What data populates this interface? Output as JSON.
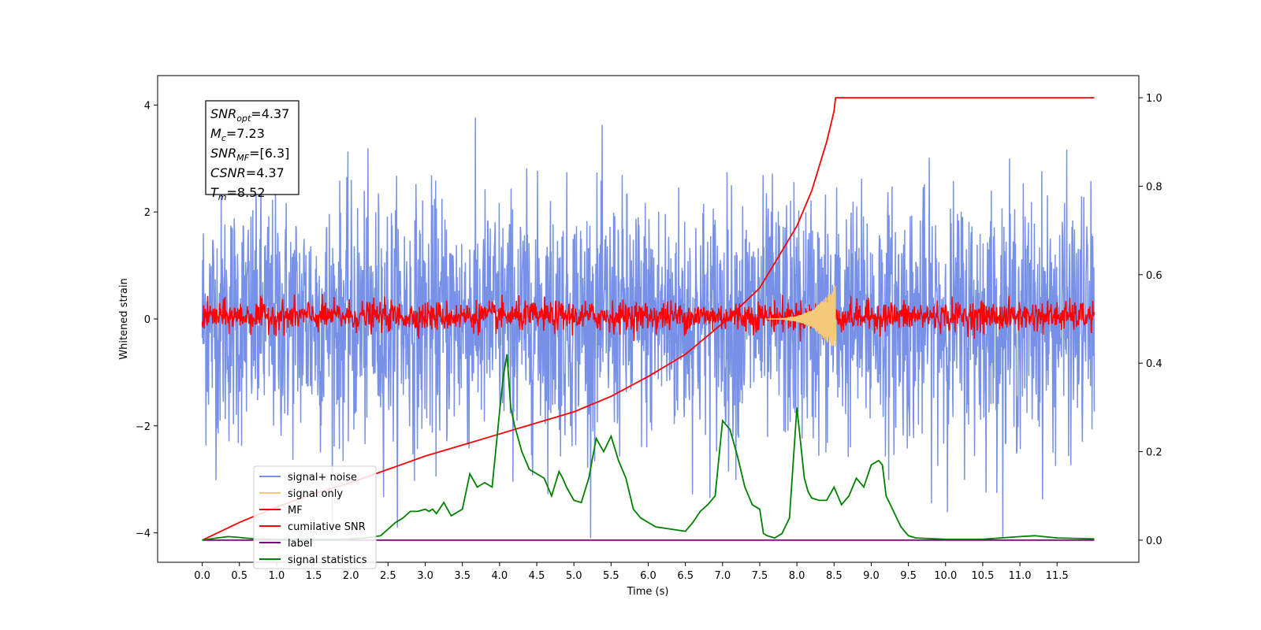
{
  "chart_data": {
    "type": "line",
    "xlabel": "Time (s)",
    "ylabel": "Whitened strain",
    "xlim": [
      -0.6,
      12.6
    ],
    "ylim": [
      -4.55,
      4.55
    ],
    "y2lim": [
      -0.05,
      1.05
    ],
    "x_ticks": [
      "0.0",
      "0.5",
      "1.0",
      "1.5",
      "2.0",
      "2.5",
      "3.0",
      "3.5",
      "4.0",
      "4.5",
      "5.0",
      "5.5",
      "6.0",
      "6.5",
      "7.0",
      "7.5",
      "8.0",
      "8.5",
      "9.0",
      "9.5",
      "10.0",
      "10.5",
      "11.0",
      "11.5"
    ],
    "y_ticks": [
      "−4",
      "−2",
      "0",
      "2",
      "4"
    ],
    "y2_ticks": [
      "0.0",
      "0.2",
      "0.4",
      "0.6",
      "0.8",
      "1.0"
    ],
    "info_box": [
      {
        "base": "SNR",
        "sub": "opt",
        "rest": "=4.37"
      },
      {
        "base": "M",
        "sub": "c",
        "rest": "=7.23"
      },
      {
        "base": "SNR",
        "sub": "MF",
        "rest": "=[6.3]"
      },
      {
        "base": "CSNR",
        "sub": "",
        "rest": "=4.37"
      },
      {
        "base": "T",
        "sub": "m",
        "rest": "=8.52"
      }
    ],
    "legend_position": "lower-left",
    "series": [
      {
        "name": "signal+ noise",
        "color": "#7891e8",
        "axis": "left",
        "kind": "noise",
        "x_range": [
          0,
          12
        ],
        "amplitude_sigma": 1.0,
        "max_abs": 4.1
      },
      {
        "name": "signal only",
        "color": "#f5c97a",
        "axis": "left",
        "kind": "chirp",
        "x_range": [
          7.6,
          8.52
        ],
        "peak_amplitude": 0.65
      },
      {
        "name": "MF",
        "color": "#ff0000",
        "axis": "left",
        "kind": "noise",
        "x_range": [
          0,
          12
        ],
        "center": 0.05,
        "amplitude_sigma": 0.14
      },
      {
        "name": "cumilative SNR",
        "color": "#ff0000",
        "axis": "right",
        "x": [
          0,
          0.5,
          1,
          1.5,
          2,
          2.5,
          3,
          3.5,
          4,
          4.5,
          5,
          5.5,
          6,
          6.5,
          7,
          7.5,
          8,
          8.2,
          8.4,
          8.5,
          8.52,
          12
        ],
        "values": [
          0.0,
          0.04,
          0.075,
          0.105,
          0.13,
          0.16,
          0.19,
          0.215,
          0.24,
          0.265,
          0.29,
          0.325,
          0.37,
          0.42,
          0.49,
          0.57,
          0.71,
          0.79,
          0.9,
          0.97,
          1.0,
          1.0
        ]
      },
      {
        "name": "label",
        "color": "#800080",
        "axis": "right",
        "x": [
          0,
          12
        ],
        "values": [
          0.0,
          0.0
        ]
      },
      {
        "name": "signal statistics",
        "color": "#008000",
        "axis": "right",
        "x": [
          0,
          0.2,
          0.35,
          0.5,
          0.7,
          1.0,
          1.3,
          1.6,
          1.9,
          2.2,
          2.4,
          2.6,
          2.7,
          2.8,
          2.9,
          3.0,
          3.05,
          3.1,
          3.15,
          3.25,
          3.35,
          3.4,
          3.5,
          3.6,
          3.7,
          3.8,
          3.9,
          4.0,
          4.05,
          4.1,
          4.15,
          4.2,
          4.3,
          4.4,
          4.5,
          4.6,
          4.7,
          4.8,
          4.85,
          4.9,
          5.0,
          5.1,
          5.2,
          5.3,
          5.4,
          5.5,
          5.6,
          5.7,
          5.8,
          5.9,
          6.0,
          6.1,
          6.3,
          6.5,
          6.6,
          6.7,
          6.8,
          6.9,
          7.0,
          7.1,
          7.2,
          7.3,
          7.4,
          7.5,
          7.55,
          7.6,
          7.7,
          7.8,
          7.9,
          8.0,
          8.1,
          8.15,
          8.2,
          8.3,
          8.4,
          8.5,
          8.6,
          8.7,
          8.8,
          8.9,
          9.0,
          9.1,
          9.15,
          9.2,
          9.4,
          9.5,
          9.6,
          10.0,
          10.5,
          11.0,
          11.2,
          11.5,
          12.0
        ],
        "values": [
          0.0,
          0.005,
          0.008,
          0.006,
          0.003,
          0.002,
          0.002,
          0.002,
          0.002,
          0.005,
          0.01,
          0.04,
          0.05,
          0.065,
          0.065,
          0.07,
          0.065,
          0.07,
          0.06,
          0.085,
          0.055,
          0.06,
          0.07,
          0.15,
          0.12,
          0.13,
          0.12,
          0.29,
          0.37,
          0.42,
          0.3,
          0.26,
          0.2,
          0.16,
          0.15,
          0.14,
          0.1,
          0.155,
          0.14,
          0.12,
          0.09,
          0.085,
          0.14,
          0.23,
          0.2,
          0.235,
          0.18,
          0.14,
          0.07,
          0.05,
          0.04,
          0.03,
          0.025,
          0.02,
          0.04,
          0.065,
          0.08,
          0.1,
          0.27,
          0.25,
          0.19,
          0.12,
          0.08,
          0.07,
          0.015,
          0.01,
          0.005,
          0.015,
          0.05,
          0.3,
          0.14,
          0.11,
          0.095,
          0.09,
          0.09,
          0.12,
          0.08,
          0.1,
          0.14,
          0.12,
          0.17,
          0.18,
          0.17,
          0.1,
          0.03,
          0.01,
          0.005,
          0.002,
          0.002,
          0.008,
          0.01,
          0.005,
          0.003
        ]
      }
    ]
  }
}
